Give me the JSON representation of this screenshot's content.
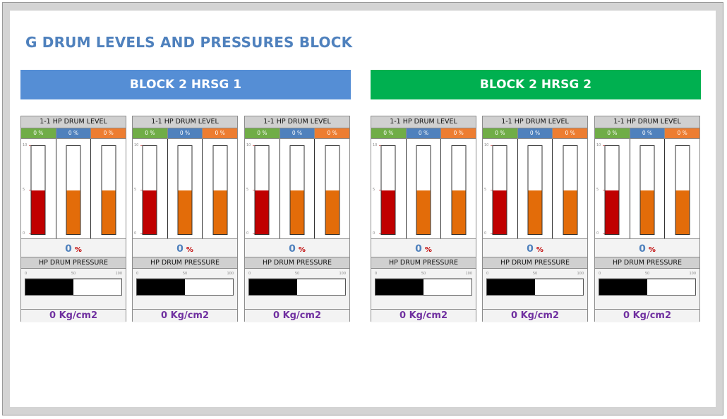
{
  "page": {
    "title": "G DRUM LEVELS AND PRESSURES BLOCK"
  },
  "colors": {
    "block1_header": "#558ed5",
    "block2_header": "#00b050",
    "pct_green": "#70ad47",
    "pct_blue": "#4f81bd",
    "pct_orange": "#ed7d31",
    "fill_red": "#c00000",
    "fill_orange": "#e36c09",
    "pressure_fill": "#000000",
    "level_value": "#4f81bd",
    "level_unit": "#c00000",
    "pressure_value": "#7030a0"
  },
  "blocks": [
    {
      "title": "BLOCK 2 HRSG 1",
      "panels": [
        {
          "level_header": "1-1 HP DRUM LEVEL",
          "pct": [
            "0 %",
            "0 %",
            "0 %"
          ],
          "scale_labels": [
            "10",
            "5",
            "0"
          ],
          "fills": [
            0.5,
            0.5,
            0.5
          ],
          "level_value": "0",
          "level_unit": "%",
          "pressure_header": "HP DRUM PRESSURE",
          "pressure_scale": [
            "0",
            "50",
            "100"
          ],
          "pressure_fill": 0.5,
          "pressure_value": "0 Kg/cm2"
        },
        {
          "level_header": "1-1 HP DRUM LEVEL",
          "pct": [
            "0 %",
            "0 %",
            "0 %"
          ],
          "scale_labels": [
            "10",
            "5",
            "0"
          ],
          "fills": [
            0.5,
            0.5,
            0.5
          ],
          "level_value": "0",
          "level_unit": "%",
          "pressure_header": "HP DRUM PRESSURE",
          "pressure_scale": [
            "0",
            "50",
            "100"
          ],
          "pressure_fill": 0.5,
          "pressure_value": "0 Kg/cm2"
        },
        {
          "level_header": "1-1 HP DRUM LEVEL",
          "pct": [
            "0 %",
            "0 %",
            "0 %"
          ],
          "scale_labels": [
            "10",
            "5",
            "0"
          ],
          "fills": [
            0.5,
            0.5,
            0.5
          ],
          "level_value": "0",
          "level_unit": "%",
          "pressure_header": "HP DRUM PRESSURE",
          "pressure_scale": [
            "0",
            "50",
            "100"
          ],
          "pressure_fill": 0.5,
          "pressure_value": "0 Kg/cm2"
        }
      ]
    },
    {
      "title": "BLOCK 2 HRSG 2",
      "panels": [
        {
          "level_header": "1-1 HP DRUM LEVEL",
          "pct": [
            "0 %",
            "0 %",
            "0 %"
          ],
          "scale_labels": [
            "10",
            "5",
            "0"
          ],
          "fills": [
            0.5,
            0.5,
            0.5
          ],
          "level_value": "0",
          "level_unit": "%",
          "pressure_header": "HP DRUM PRESSURE",
          "pressure_scale": [
            "0",
            "50",
            "100"
          ],
          "pressure_fill": 0.5,
          "pressure_value": "0 Kg/cm2"
        },
        {
          "level_header": "1-1 HP DRUM LEVEL",
          "pct": [
            "0 %",
            "0 %",
            "0 %"
          ],
          "scale_labels": [
            "10",
            "5",
            "0"
          ],
          "fills": [
            0.5,
            0.5,
            0.5
          ],
          "level_value": "0",
          "level_unit": "%",
          "pressure_header": "HP DRUM PRESSURE",
          "pressure_scale": [
            "0",
            "50",
            "100"
          ],
          "pressure_fill": 0.5,
          "pressure_value": "0 Kg/cm2"
        },
        {
          "level_header": "1-1 HP DRUM LEVEL",
          "pct": [
            "0 %",
            "0 %",
            "0 %"
          ],
          "scale_labels": [
            "10",
            "5",
            "0"
          ],
          "fills": [
            0.5,
            0.5,
            0.5
          ],
          "level_value": "0",
          "level_unit": "%",
          "pressure_header": "HP DRUM PRESSURE",
          "pressure_scale": [
            "0",
            "50",
            "100"
          ],
          "pressure_fill": 0.5,
          "pressure_value": "0 Kg/cm2"
        }
      ]
    }
  ]
}
